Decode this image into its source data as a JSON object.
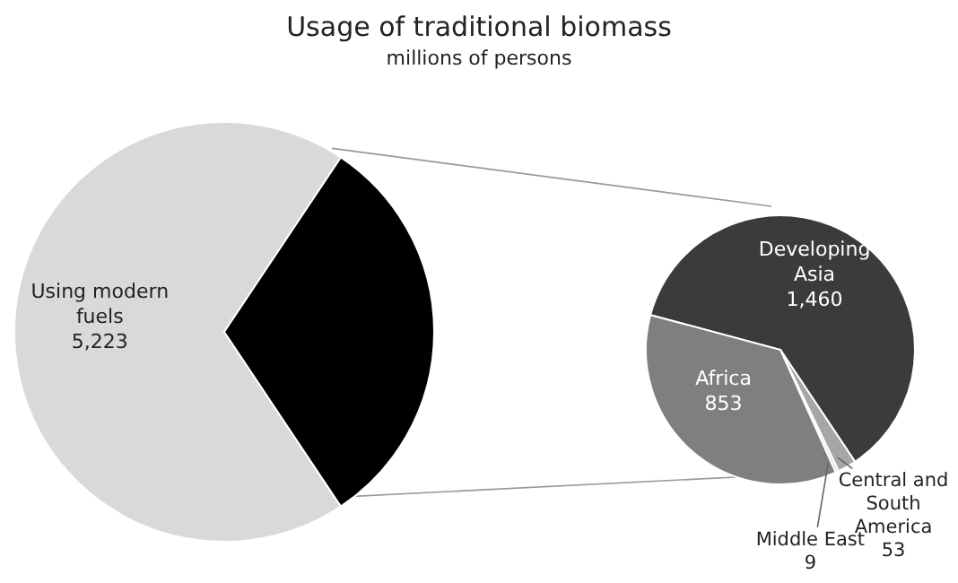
{
  "chart_data": [
    {
      "type": "pie",
      "title": "Usage of traditional biomass",
      "subtitle": "millions of persons",
      "categories": [
        "Using modern fuels",
        null
      ],
      "values": [
        5223,
        2375
      ],
      "colors": [
        "#d9d9d9",
        "#000000"
      ],
      "value_labels": [
        "5,223",
        null
      ]
    },
    {
      "type": "pie",
      "categories": [
        "Developing Asia",
        "Central and South America",
        "Middle East",
        "Africa"
      ],
      "values": [
        1460,
        53,
        9,
        853
      ],
      "colors": [
        "#3b3b3b",
        "#a6a6a6",
        "#dcdcdc",
        "#7f7f7f"
      ],
      "value_labels": [
        "1,460",
        "53",
        "9",
        "853"
      ]
    }
  ]
}
